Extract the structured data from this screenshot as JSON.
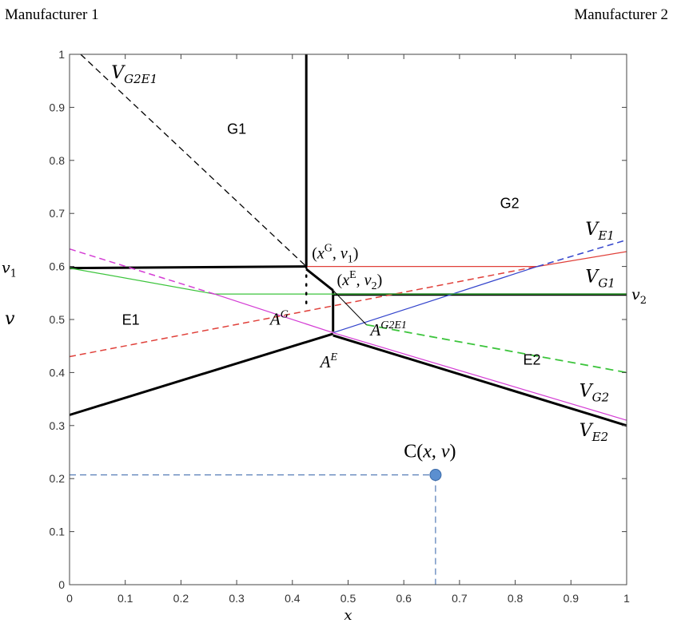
{
  "header": {
    "left": "Manufacturer  1",
    "right": "Manufacturer  2"
  },
  "chart_data": {
    "type": "line",
    "xlabel": "x",
    "ylabel": "v",
    "xlim": [
      0,
      1
    ],
    "ylim": [
      0,
      1
    ],
    "x_ticks": [
      "0",
      "0.1",
      "0.2",
      "0.3",
      "0.4",
      "0.5",
      "0.6",
      "0.7",
      "0.8",
      "0.9",
      "1"
    ],
    "y_ticks": [
      "0",
      "0.1",
      "0.2",
      "0.3",
      "0.4",
      "0.5",
      "0.6",
      "0.7",
      "0.8",
      "0.9",
      "1"
    ],
    "grid": false,
    "lines": [
      {
        "id": "v-g2e1",
        "style": "dashed",
        "color": "#000000",
        "width": 1.3,
        "points": [
          [
            0.02,
            1.0
          ],
          [
            0.425,
            0.6
          ]
        ]
      },
      {
        "id": "v-g1-boundary",
        "style": "solid",
        "color": "#000000",
        "width": 3,
        "points": [
          [
            0.425,
            1.0
          ],
          [
            0.425,
            0.6
          ]
        ]
      },
      {
        "id": "v1-line",
        "style": "solid",
        "color": "#000000",
        "width": 3,
        "points": [
          [
            0.0,
            0.597
          ],
          [
            0.425,
            0.6
          ]
        ]
      },
      {
        "id": "g-link",
        "style": "solid",
        "color": "#000000",
        "width": 3,
        "points": [
          [
            0.425,
            0.595
          ],
          [
            0.473,
            0.555
          ]
        ]
      },
      {
        "id": "xe-vertical",
        "style": "solid",
        "color": "#000000",
        "width": 3,
        "points": [
          [
            0.473,
            0.555
          ],
          [
            0.473,
            0.477
          ]
        ]
      },
      {
        "id": "v2-line",
        "style": "solid",
        "color": "#000000",
        "width": 3,
        "points": [
          [
            0.473,
            0.547
          ],
          [
            1.0,
            0.547
          ]
        ]
      },
      {
        "id": "lower-left",
        "style": "solid",
        "color": "#000000",
        "width": 3,
        "points": [
          [
            0.0,
            0.32
          ],
          [
            0.473,
            0.473
          ]
        ]
      },
      {
        "id": "v-e2",
        "style": "solid",
        "color": "#000000",
        "width": 3,
        "points": [
          [
            0.473,
            0.47
          ],
          [
            1.0,
            0.3
          ]
        ]
      },
      {
        "id": "red-solid",
        "style": "solid",
        "color": "#e0403a",
        "width": 1.2,
        "points": [
          [
            0.425,
            0.6
          ],
          [
            0.84,
            0.6
          ],
          [
            1.0,
            0.628
          ]
        ]
      },
      {
        "id": "v-g1-red-dashed",
        "style": "dashed",
        "color": "#e0403a",
        "width": 1.5,
        "points": [
          [
            0.0,
            0.43
          ],
          [
            0.84,
            0.6
          ]
        ]
      },
      {
        "id": "v-e1-blue-solid",
        "style": "solid",
        "color": "#3344cc",
        "width": 1.2,
        "points": [
          [
            0.473,
            0.475
          ],
          [
            0.84,
            0.6
          ]
        ]
      },
      {
        "id": "v-e1-blue-dashed",
        "style": "dashed",
        "color": "#3344cc",
        "width": 1.5,
        "points": [
          [
            0.84,
            0.6
          ],
          [
            1.0,
            0.65
          ]
        ]
      },
      {
        "id": "green-solid-curve",
        "style": "solid",
        "color": "#3cc43c",
        "width": 1.2,
        "points": [
          [
            0.0,
            0.597
          ],
          [
            0.26,
            0.548
          ]
        ]
      },
      {
        "id": "green-solid-flat",
        "style": "solid",
        "color": "#3cc43c",
        "width": 1.2,
        "points": [
          [
            0.26,
            0.548
          ],
          [
            1.0,
            0.548
          ]
        ]
      },
      {
        "id": "v-g2-green-dashed",
        "style": "dashed",
        "color": "#3cc43c",
        "width": 1.8,
        "points": [
          [
            0.533,
            0.49
          ],
          [
            1.0,
            0.4
          ]
        ]
      },
      {
        "id": "magenta-dashed",
        "style": "dashed",
        "color": "#d43cd4",
        "width": 1.5,
        "points": [
          [
            0.0,
            0.633
          ],
          [
            0.26,
            0.548
          ]
        ]
      },
      {
        "id": "magenta-solid",
        "style": "solid",
        "color": "#d43cd4",
        "width": 1.2,
        "points": [
          [
            0.26,
            0.548
          ],
          [
            0.473,
            0.475
          ],
          [
            1.0,
            0.31
          ]
        ]
      },
      {
        "id": "thin-link",
        "style": "solid",
        "color": "#000000",
        "width": 1,
        "points": [
          [
            0.473,
            0.555
          ],
          [
            0.533,
            0.49
          ]
        ]
      },
      {
        "id": "c-horizontal",
        "style": "dashed",
        "color": "#3060a8",
        "width": 1,
        "points": [
          [
            0.0,
            0.207
          ],
          [
            0.657,
            0.207
          ]
        ]
      },
      {
        "id": "c-vertical",
        "style": "dashed",
        "color": "#3060a8",
        "width": 1,
        "points": [
          [
            0.657,
            0.207
          ],
          [
            0.657,
            0.0
          ]
        ]
      }
    ],
    "dotted": [
      {
        "id": "xg-dotted",
        "x": 0.425,
        "y_from": 0.6,
        "y_to": 0.52
      }
    ],
    "points": [
      {
        "id": "point-c",
        "x": 0.657,
        "y": 0.207,
        "color": "#5b8fd0"
      }
    ],
    "region_labels": [
      {
        "id": "label-g1",
        "text": "G1",
        "x": 0.3,
        "y": 0.85
      },
      {
        "id": "label-g2",
        "text": "G2",
        "x": 0.79,
        "y": 0.71
      },
      {
        "id": "label-e1",
        "text": "E1",
        "x": 0.11,
        "y": 0.49
      },
      {
        "id": "label-e2",
        "text": "E2",
        "x": 0.83,
        "y": 0.415
      }
    ],
    "curve_labels": [
      {
        "id": "label-v-g2e1",
        "main": "V",
        "sub": "G2E1",
        "x": 0.075,
        "y": 0.955
      },
      {
        "id": "label-v-e1",
        "main": "V",
        "sub": "E1",
        "x": 0.926,
        "y": 0.66
      },
      {
        "id": "label-v-g1",
        "main": "V",
        "sub": "G1",
        "x": 0.926,
        "y": 0.57
      },
      {
        "id": "label-v-g2",
        "main": "V",
        "sub": "G2",
        "x": 0.915,
        "y": 0.355
      },
      {
        "id": "label-v-e2",
        "main": "V",
        "sub": "E2",
        "x": 0.915,
        "y": 0.28
      }
    ],
    "point_labels": [
      {
        "id": "label-xg-v1",
        "text": "(xG, v1)",
        "x": 0.435,
        "y": 0.615
      },
      {
        "id": "label-xe-v2",
        "text": "(xE, v2)",
        "x": 0.48,
        "y": 0.565
      },
      {
        "id": "label-ag",
        "text": "AG",
        "x": 0.36,
        "y": 0.49
      },
      {
        "id": "label-ag2e1",
        "text": "AG2E1",
        "x": 0.54,
        "y": 0.47
      },
      {
        "id": "label-ae",
        "text": "AE",
        "x": 0.45,
        "y": 0.41
      },
      {
        "id": "label-c",
        "text": "C(x, v)",
        "x": 0.6,
        "y": 0.24
      }
    ],
    "axis_annotations": [
      {
        "id": "label-v1",
        "text": "v1",
        "x": 0.0,
        "y": 0.597,
        "side": "left"
      },
      {
        "id": "label-v2",
        "text": "v2",
        "x": 1.0,
        "y": 0.547,
        "side": "right"
      }
    ]
  }
}
